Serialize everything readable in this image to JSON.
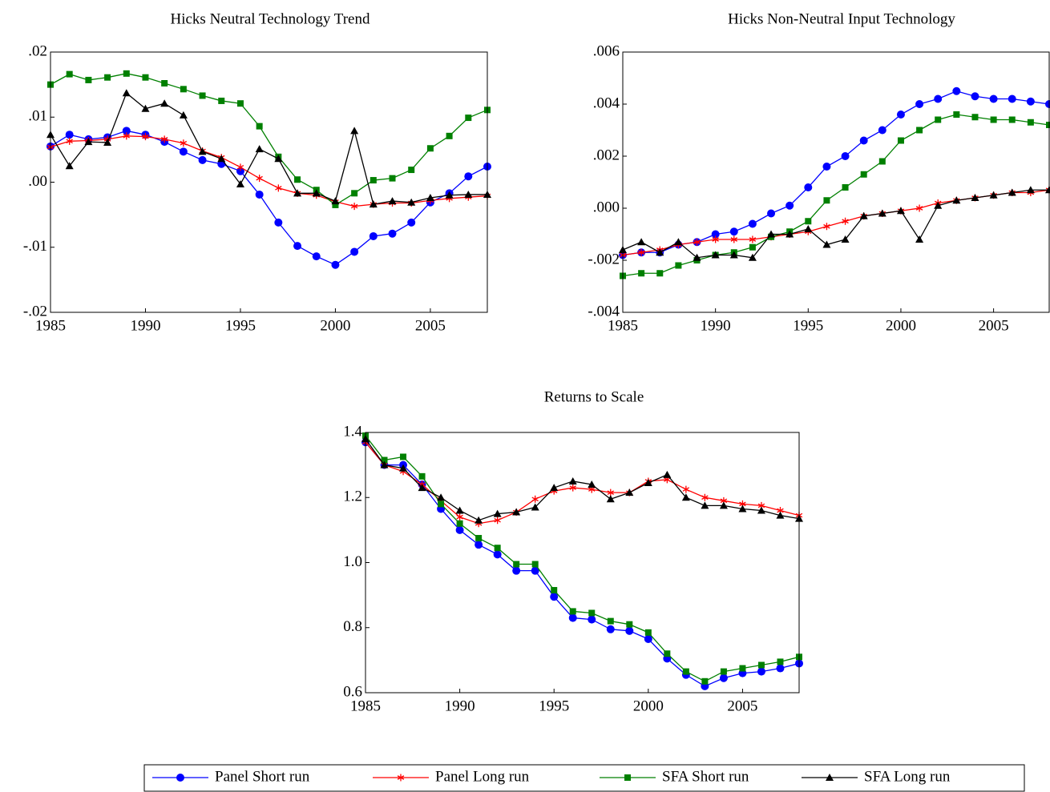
{
  "legend": [
    {
      "name": "Panel Short run",
      "color": "#0000ff",
      "marker": "circle"
    },
    {
      "name": "Panel Long run",
      "color": "#ff0000",
      "marker": "star"
    },
    {
      "name": "SFA Short run",
      "color": "#008000",
      "marker": "square"
    },
    {
      "name": "SFA Long run",
      "color": "#000000",
      "marker": "triangle"
    }
  ],
  "chart_data": [
    {
      "type": "line",
      "title": "Hicks Neutral Technology Trend",
      "x": [
        1985,
        1986,
        1987,
        1988,
        1989,
        1990,
        1991,
        1992,
        1993,
        1994,
        1995,
        1996,
        1997,
        1998,
        1999,
        2000,
        2001,
        2002,
        2003,
        2004,
        2005,
        2006,
        2007,
        2008
      ],
      "xlim": [
        1985,
        2008
      ],
      "xticks": [
        1985,
        1990,
        1995,
        2000,
        2005
      ],
      "ylim": [
        -0.02,
        0.02
      ],
      "yticks": [
        {
          "value": -0.02,
          "label": "-.02"
        },
        {
          "value": -0.01,
          "label": "-.01"
        },
        {
          "value": 0,
          "label": ".00"
        },
        {
          "value": 0.01,
          "label": ".01"
        },
        {
          "value": 0.02,
          "label": ".02"
        }
      ],
      "series": [
        {
          "values": [
            0.0055,
            0.0073,
            0.0066,
            0.0069,
            0.0079,
            0.0073,
            0.0062,
            0.0047,
            0.0034,
            0.0028,
            0.0017,
            -0.0019,
            -0.0062,
            -0.0098,
            -0.0114,
            -0.0127,
            -0.0107,
            -0.0083,
            -0.0079,
            -0.0062,
            -0.0031,
            -0.0017,
            0.0009,
            0.0024
          ]
        },
        {
          "values": [
            0.0054,
            0.0063,
            0.0064,
            0.0066,
            0.0071,
            0.007,
            0.0066,
            0.006,
            0.0048,
            0.0038,
            0.0023,
            0.0006,
            -0.0009,
            -0.0017,
            -0.002,
            -0.003,
            -0.0037,
            -0.0034,
            -0.0032,
            -0.0032,
            -0.0028,
            -0.0025,
            -0.0023,
            -0.0021
          ]
        },
        {
          "values": [
            0.015,
            0.0166,
            0.0157,
            0.0161,
            0.0167,
            0.0161,
            0.0152,
            0.0143,
            0.0133,
            0.0125,
            0.0121,
            0.0086,
            0.0039,
            0.0004,
            -0.0012,
            -0.0035,
            -0.0017,
            0.0003,
            0.0006,
            0.0019,
            0.0052,
            0.0071,
            0.0099,
            0.0111
          ]
        },
        {
          "values": [
            0.0073,
            0.0025,
            0.0062,
            0.0061,
            0.0137,
            0.0113,
            0.0121,
            0.0103,
            0.0047,
            0.0036,
            -0.0003,
            0.0051,
            0.0036,
            -0.0017,
            -0.0017,
            -0.0029,
            0.0079,
            -0.0034,
            -0.0029,
            -0.0031,
            -0.0024,
            -0.002,
            -0.0019,
            -0.0019
          ]
        }
      ]
    },
    {
      "type": "line",
      "title": "Hicks Non-Neutral Input Technology",
      "x": [
        1985,
        1986,
        1987,
        1988,
        1989,
        1990,
        1991,
        1992,
        1993,
        1994,
        1995,
        1996,
        1997,
        1998,
        1999,
        2000,
        2001,
        2002,
        2003,
        2004,
        2005,
        2006,
        2007,
        2008
      ],
      "xlim": [
        1985,
        2008
      ],
      "xticks": [
        1985,
        1990,
        1995,
        2000,
        2005
      ],
      "ylim": [
        -0.004,
        0.006
      ],
      "yticks": [
        {
          "value": -0.004,
          "label": "-.004"
        },
        {
          "value": -0.002,
          "label": "-.002"
        },
        {
          "value": 0,
          "label": ".000"
        },
        {
          "value": 0.002,
          "label": ".002"
        },
        {
          "value": 0.004,
          "label": ".004"
        },
        {
          "value": 0.006,
          "label": ".006"
        }
      ],
      "series": [
        {
          "values": [
            -0.0018,
            -0.0017,
            -0.0017,
            -0.0014,
            -0.0013,
            -0.001,
            -0.0009,
            -0.0006,
            -0.0002,
            0.0001,
            0.0008,
            0.0016,
            0.002,
            0.0026,
            0.003,
            0.0036,
            0.004,
            0.0042,
            0.0045,
            0.0043,
            0.0042,
            0.0042,
            0.0041,
            0.004
          ]
        },
        {
          "values": [
            -0.0018,
            -0.0017,
            -0.0016,
            -0.0014,
            -0.0013,
            -0.0012,
            -0.0012,
            -0.0012,
            -0.0011,
            -0.001,
            -0.0009,
            -0.0007,
            -0.0005,
            -0.0003,
            -0.0002,
            -0.0001,
            0.0,
            0.0002,
            0.0003,
            0.0004,
            0.0005,
            0.0006,
            0.0006,
            0.0007
          ]
        },
        {
          "values": [
            -0.0026,
            -0.0025,
            -0.0025,
            -0.0022,
            -0.002,
            -0.0018,
            -0.0017,
            -0.0015,
            -0.0011,
            -0.0009,
            -0.0005,
            0.0003,
            0.0008,
            0.0013,
            0.0018,
            0.0026,
            0.003,
            0.0034,
            0.0036,
            0.0035,
            0.0034,
            0.0034,
            0.0033,
            0.0032
          ]
        },
        {
          "values": [
            -0.0016,
            -0.0013,
            -0.0017,
            -0.0013,
            -0.0019,
            -0.0018,
            -0.0018,
            -0.0019,
            -0.001,
            -0.001,
            -0.0008,
            -0.0014,
            -0.0012,
            -0.0003,
            -0.0002,
            -0.0001,
            -0.0012,
            0.0001,
            0.0003,
            0.0004,
            0.0005,
            0.0006,
            0.0007,
            0.0007
          ]
        }
      ]
    },
    {
      "type": "line",
      "title": "Returns to Scale",
      "x": [
        1985,
        1986,
        1987,
        1988,
        1989,
        1990,
        1991,
        1992,
        1993,
        1994,
        1995,
        1996,
        1997,
        1998,
        1999,
        2000,
        2001,
        2002,
        2003,
        2004,
        2005,
        2006,
        2007,
        2008
      ],
      "xlim": [
        1985,
        2008
      ],
      "xticks": [
        1985,
        1990,
        1995,
        2000,
        2005
      ],
      "ylim": [
        0.6,
        1.4
      ],
      "yticks": [
        0.6,
        0.8,
        {
          "value": 1,
          "label": "1.0"
        },
        1.2,
        1.4
      ],
      "series": [
        {
          "values": [
            1.37,
            1.3,
            1.3,
            1.24,
            1.165,
            1.1,
            1.055,
            1.025,
            0.975,
            0.975,
            0.895,
            0.83,
            0.825,
            0.795,
            0.79,
            0.765,
            0.705,
            0.655,
            0.62,
            0.645,
            0.66,
            0.665,
            0.675,
            0.69
          ]
        },
        {
          "values": [
            1.37,
            1.3,
            1.28,
            1.24,
            1.19,
            1.14,
            1.12,
            1.13,
            1.155,
            1.195,
            1.22,
            1.23,
            1.225,
            1.215,
            1.215,
            1.25,
            1.255,
            1.225,
            1.2,
            1.19,
            1.18,
            1.175,
            1.16,
            1.145
          ]
        },
        {
          "values": [
            1.39,
            1.315,
            1.325,
            1.265,
            1.18,
            1.12,
            1.075,
            1.045,
            0.995,
            0.995,
            0.915,
            0.85,
            0.845,
            0.82,
            0.81,
            0.785,
            0.72,
            0.665,
            0.635,
            0.665,
            0.675,
            0.685,
            0.695,
            0.71
          ]
        },
        {
          "values": [
            1.38,
            1.3,
            1.29,
            1.23,
            1.2,
            1.16,
            1.13,
            1.15,
            1.155,
            1.17,
            1.23,
            1.25,
            1.24,
            1.195,
            1.215,
            1.245,
            1.27,
            1.2,
            1.175,
            1.175,
            1.165,
            1.16,
            1.145,
            1.135
          ]
        }
      ]
    }
  ]
}
